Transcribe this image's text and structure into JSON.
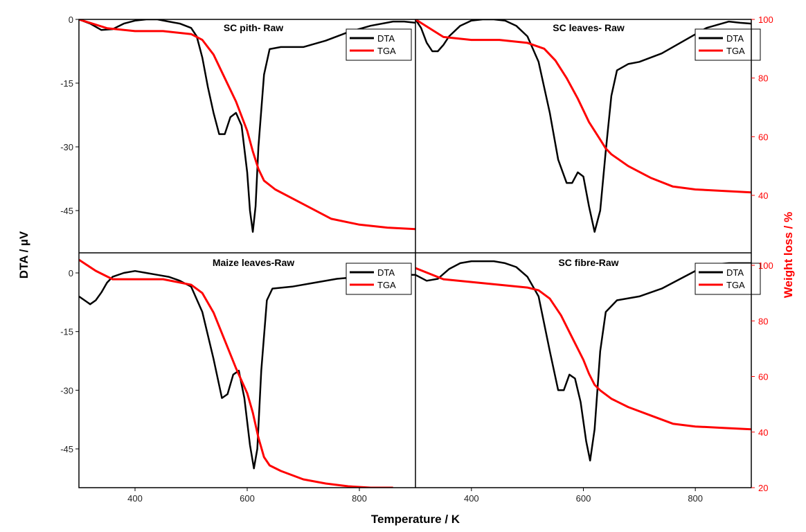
{
  "colors": {
    "dta": "#000000",
    "tga": "#ff0000",
    "frame": "#000000"
  },
  "chart_data": {
    "type": "line",
    "xlabel": "Temperature / K",
    "ylabel_left": "DTA / µV",
    "ylabel_right": "Weight loss / %",
    "xlim": [
      300,
      900
    ],
    "x_ticks": [
      400,
      600,
      800
    ],
    "left_ylim": [
      -55,
      0
    ],
    "right_ylim": [
      20,
      100
    ],
    "left_ticks_top": [
      0,
      -15,
      -30,
      -45
    ],
    "left_ticks_bottom": [
      0,
      -15,
      -30,
      -45
    ],
    "right_ticks_top": [
      100,
      80,
      60,
      40
    ],
    "right_ticks_bottom": [
      100,
      80,
      60,
      40,
      20
    ],
    "panels": [
      {
        "title": "SC pith- Raw",
        "legend": [
          "DTA",
          "TGA"
        ],
        "series": [
          {
            "name": "DTA",
            "axis": "left",
            "x": [
              300,
              320,
              340,
              360,
              380,
              400,
              420,
              440,
              460,
              480,
              500,
              510,
              520,
              530,
              540,
              550,
              560,
              570,
              580,
              590,
              600,
              605,
              610,
              615,
              620,
              630,
              640,
              660,
              700,
              740,
              780,
              820,
              860,
              880,
              900
            ],
            "y": [
              0,
              -1,
              -2.5,
              -2.3,
              -1,
              -0.3,
              0,
              0,
              -0.5,
              -1,
              -2,
              -4,
              -9,
              -16,
              -22,
              -27,
              -27,
              -23,
              -22,
              -25,
              -36,
              -45,
              -50,
              -44,
              -30,
              -13,
              -7,
              -6.5,
              -6.5,
              -5,
              -3,
              -1.5,
              -0.5,
              -0.5,
              -0.8
            ]
          },
          {
            "name": "TGA",
            "axis": "right",
            "x": [
              300,
              350,
              400,
              450,
              500,
              520,
              540,
              560,
              580,
              600,
              610,
              620,
              630,
              650,
              700,
              750,
              800,
              850,
              900
            ],
            "y": [
              100,
              97,
              96,
              96,
              95,
              93,
              88,
              80,
              72,
              62,
              55,
              49,
              45,
              42,
              37,
              32,
              30,
              29,
              28.5
            ]
          }
        ]
      },
      {
        "title": "SC leaves- Raw",
        "legend": [
          "DTA",
          "TGA"
        ],
        "series": [
          {
            "name": "DTA",
            "axis": "left",
            "x": [
              300,
              310,
              320,
              330,
              340,
              350,
              360,
              380,
              400,
              420,
              440,
              460,
              480,
              500,
              520,
              540,
              555,
              570,
              580,
              590,
              600,
              610,
              620,
              630,
              640,
              650,
              660,
              680,
              700,
              740,
              780,
              820,
              860,
              880,
              900
            ],
            "y": [
              0,
              -2,
              -5.5,
              -7.5,
              -7.5,
              -6,
              -4,
              -1.5,
              -0.3,
              0,
              0,
              -0.3,
              -1.5,
              -4,
              -10,
              -22,
              -33,
              -38.5,
              -38.5,
              -36,
              -37,
              -44,
              -50,
              -45,
              -31,
              -18,
              -12,
              -10.5,
              -10,
              -8,
              -5,
              -2,
              -0.5,
              -0.8,
              -1
            ]
          },
          {
            "name": "TGA",
            "axis": "right",
            "x": [
              300,
              350,
              400,
              450,
              500,
              530,
              550,
              570,
              590,
              610,
              630,
              640,
              650,
              680,
              720,
              760,
              800,
              850,
              900
            ],
            "y": [
              100,
              94,
              93,
              93,
              92,
              90,
              86,
              80,
              73,
              65,
              59,
              56,
              54,
              50,
              46,
              43,
              42,
              41.5,
              41
            ]
          }
        ]
      },
      {
        "title": "Maize leaves-Raw",
        "legend": [
          "DTA",
          "TGA"
        ],
        "series": [
          {
            "name": "DTA",
            "axis": "left",
            "x": [
              300,
              310,
              320,
              330,
              340,
              350,
              360,
              380,
              400,
              420,
              440,
              460,
              480,
              500,
              520,
              540,
              555,
              565,
              575,
              585,
              595,
              605,
              612,
              618,
              625,
              635,
              645,
              680,
              720,
              760,
              800,
              840,
              880,
              900
            ],
            "y": [
              -6,
              -7,
              -8,
              -7,
              -5,
              -2.5,
              -1,
              0,
              0.5,
              0,
              -0.5,
              -1,
              -2,
              -3.5,
              -10,
              -22,
              -32,
              -31,
              -26,
              -25,
              -32,
              -44,
              -50,
              -45,
              -25,
              -7,
              -4,
              -3.5,
              -2.5,
              -1.5,
              -1,
              -0.5,
              -0.5,
              -0.5
            ]
          },
          {
            "name": "TGA",
            "axis": "right",
            "x": [
              300,
              330,
              360,
              400,
              450,
              500,
              520,
              540,
              560,
              580,
              600,
              610,
              620,
              630,
              640,
              660,
              700,
              740,
              780,
              820,
              860
            ],
            "y": [
              102,
              98,
              95,
              95,
              95,
              93,
              90,
              83,
              73,
              63,
              54,
              47,
              38,
              31,
              28,
              26,
              23,
              21.5,
              20.5,
              20,
              20
            ]
          }
        ]
      },
      {
        "title": "SC fibre-Raw",
        "legend": [
          "DTA",
          "TGA"
        ],
        "series": [
          {
            "name": "DTA",
            "axis": "left",
            "x": [
              300,
              320,
              340,
              360,
              380,
              400,
              420,
              440,
              460,
              480,
              500,
              520,
              540,
              555,
              565,
              575,
              585,
              595,
              605,
              612,
              620,
              630,
              640,
              660,
              700,
              740,
              780,
              820,
              860,
              900
            ],
            "y": [
              -0.5,
              -2,
              -1.5,
              1,
              2.5,
              3,
              3,
              3,
              2.5,
              1.5,
              -1,
              -6,
              -20,
              -30,
              -30,
              -26,
              -27,
              -33,
              -43,
              -48,
              -40,
              -20,
              -10,
              -7,
              -6,
              -4,
              -1,
              2,
              2.5,
              2.5
            ]
          },
          {
            "name": "TGA",
            "axis": "right",
            "x": [
              300,
              350,
              400,
              450,
              500,
              520,
              540,
              560,
              580,
              600,
              610,
              620,
              630,
              650,
              680,
              720,
              760,
              800,
              850,
              900
            ],
            "y": [
              99,
              95,
              94,
              93,
              92,
              91,
              88,
              82,
              74,
              66,
              61,
              57,
              55,
              52,
              49,
              46,
              43,
              42,
              41.5,
              41
            ]
          }
        ]
      }
    ]
  }
}
